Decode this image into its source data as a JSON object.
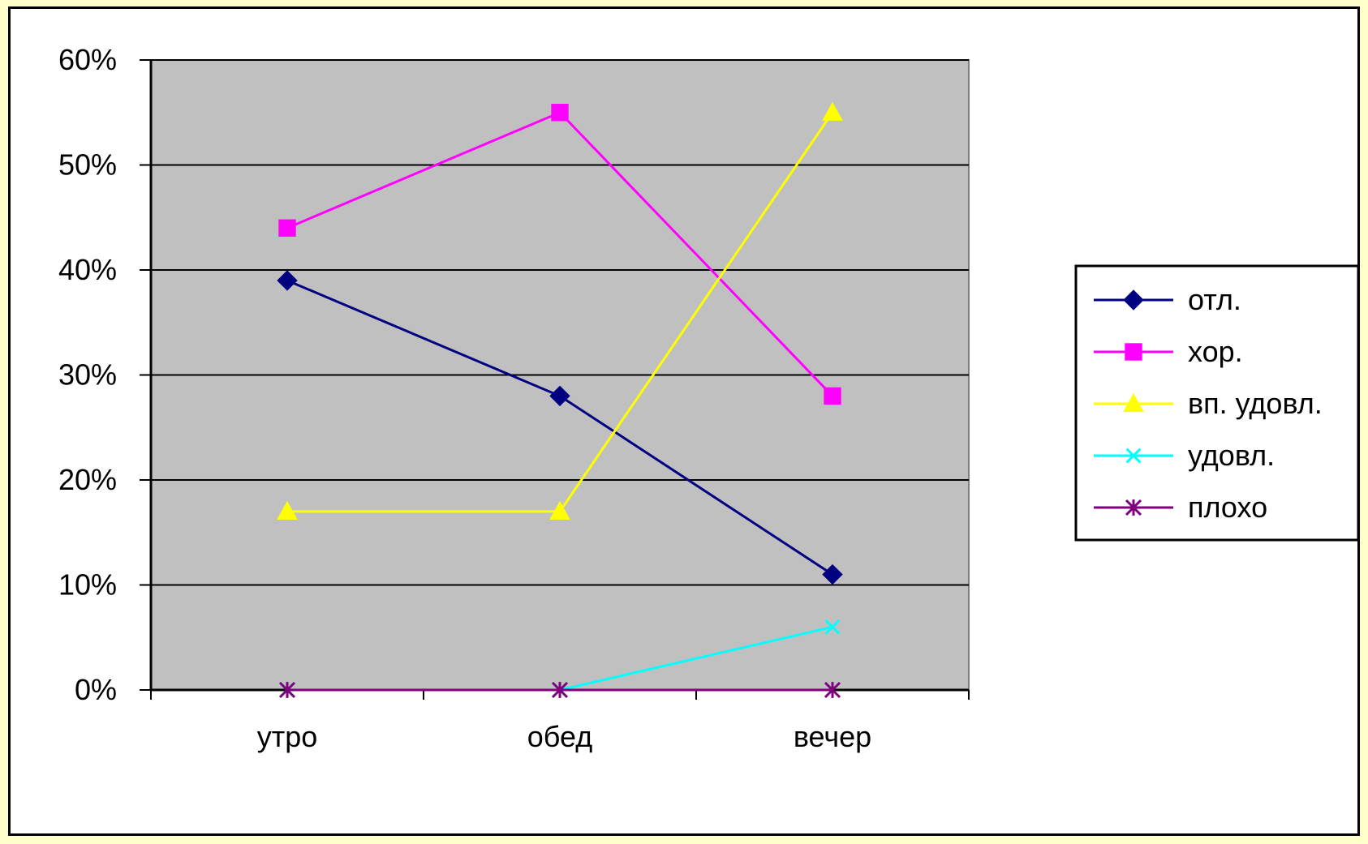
{
  "chart_data": {
    "type": "line",
    "categories": [
      "утро",
      "обед",
      "вечер"
    ],
    "y_ticks": [
      "0%",
      "10%",
      "20%",
      "30%",
      "40%",
      "50%",
      "60%"
    ],
    "ylim": [
      0,
      60
    ],
    "grid": true,
    "legend_placement": "right",
    "plot_background": "#c0c0c0",
    "series": [
      {
        "name": "отл.",
        "values": [
          39,
          28,
          11
        ],
        "color": "#000080",
        "marker": "diamond"
      },
      {
        "name": "хор.",
        "values": [
          44,
          55,
          28
        ],
        "color": "#ff00ff",
        "marker": "square"
      },
      {
        "name": "вп. удовл.",
        "values": [
          17,
          17,
          55
        ],
        "color": "#ffff00",
        "marker": "triangle"
      },
      {
        "name": "удовл.",
        "values": [
          0,
          0,
          6
        ],
        "color": "#00ffff",
        "marker": "x"
      },
      {
        "name": "плохо",
        "values": [
          0,
          0,
          0
        ],
        "color": "#800080",
        "marker": "star"
      }
    ]
  }
}
